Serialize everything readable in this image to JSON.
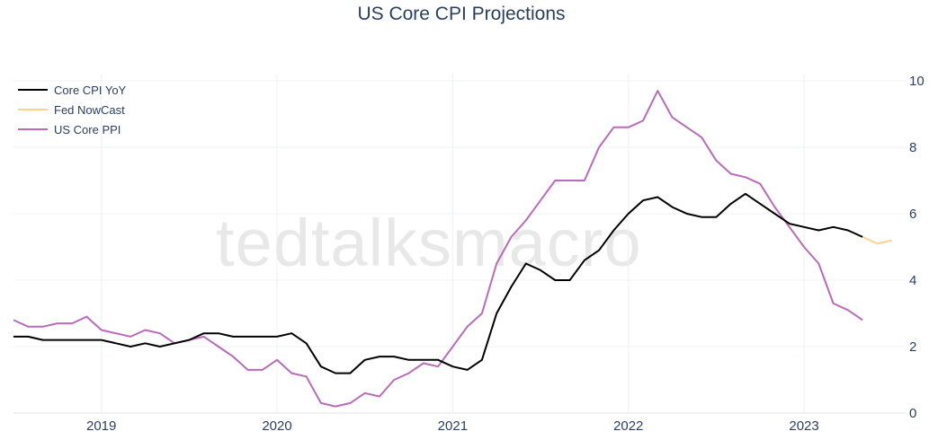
{
  "title": "US Core CPI Projections",
  "watermark": "tedtalksmacro",
  "chart_data": {
    "type": "line",
    "title": "US Core CPI Projections",
    "xlabel": "",
    "ylabel": "",
    "xlim": [
      "2018-07-01",
      "2023-08-01"
    ],
    "ylim": [
      0,
      10
    ],
    "yaxis_side": "right",
    "x_ticks": [
      "2019",
      "2020",
      "2021",
      "2022",
      "2023"
    ],
    "y_ticks": [
      0,
      2,
      4,
      6,
      8,
      10
    ],
    "grid": true,
    "legend_position": "top-left",
    "series": [
      {
        "name": "Core CPI YoY",
        "color": "#000000",
        "x": [
          "2018-07",
          "2018-08",
          "2018-09",
          "2018-10",
          "2018-11",
          "2018-12",
          "2019-01",
          "2019-02",
          "2019-03",
          "2019-04",
          "2019-05",
          "2019-06",
          "2019-07",
          "2019-08",
          "2019-09",
          "2019-10",
          "2019-11",
          "2019-12",
          "2020-01",
          "2020-02",
          "2020-03",
          "2020-04",
          "2020-05",
          "2020-06",
          "2020-07",
          "2020-08",
          "2020-09",
          "2020-10",
          "2020-11",
          "2020-12",
          "2021-01",
          "2021-02",
          "2021-03",
          "2021-04",
          "2021-05",
          "2021-06",
          "2021-07",
          "2021-08",
          "2021-09",
          "2021-10",
          "2021-11",
          "2021-12",
          "2022-01",
          "2022-02",
          "2022-03",
          "2022-04",
          "2022-05",
          "2022-06",
          "2022-07",
          "2022-08",
          "2022-09",
          "2022-10",
          "2022-11",
          "2022-12",
          "2023-01",
          "2023-02",
          "2023-03",
          "2023-04",
          "2023-05"
        ],
        "y": [
          2.3,
          2.3,
          2.2,
          2.2,
          2.2,
          2.2,
          2.2,
          2.1,
          2.0,
          2.1,
          2.0,
          2.1,
          2.2,
          2.4,
          2.4,
          2.3,
          2.3,
          2.3,
          2.3,
          2.4,
          2.1,
          1.4,
          1.2,
          1.2,
          1.6,
          1.7,
          1.7,
          1.6,
          1.6,
          1.6,
          1.4,
          1.3,
          1.6,
          3.0,
          3.8,
          4.5,
          4.3,
          4.0,
          4.0,
          4.6,
          4.9,
          5.5,
          6.0,
          6.4,
          6.5,
          6.2,
          6.0,
          5.9,
          5.9,
          6.3,
          6.6,
          6.3,
          6.0,
          5.7,
          5.6,
          5.5,
          5.6,
          5.5,
          5.3
        ]
      },
      {
        "name": "Fed NowCast",
        "color": "#ffd18f",
        "x": [
          "2023-05",
          "2023-06",
          "2023-07"
        ],
        "y": [
          5.3,
          5.1,
          5.2
        ]
      },
      {
        "name": "US Core PPI",
        "color": "#b96bb9",
        "x": [
          "2018-07",
          "2018-08",
          "2018-09",
          "2018-10",
          "2018-11",
          "2018-12",
          "2019-01",
          "2019-02",
          "2019-03",
          "2019-04",
          "2019-05",
          "2019-06",
          "2019-07",
          "2019-08",
          "2019-09",
          "2019-10",
          "2019-11",
          "2019-12",
          "2020-01",
          "2020-02",
          "2020-03",
          "2020-04",
          "2020-05",
          "2020-06",
          "2020-07",
          "2020-08",
          "2020-09",
          "2020-10",
          "2020-11",
          "2020-12",
          "2021-01",
          "2021-02",
          "2021-03",
          "2021-04",
          "2021-05",
          "2021-06",
          "2021-07",
          "2021-08",
          "2021-09",
          "2021-10",
          "2021-11",
          "2021-12",
          "2022-01",
          "2022-02",
          "2022-03",
          "2022-04",
          "2022-05",
          "2022-06",
          "2022-07",
          "2022-08",
          "2022-09",
          "2022-10",
          "2022-11",
          "2022-12",
          "2023-01",
          "2023-02",
          "2023-03",
          "2023-04",
          "2023-05"
        ],
        "y": [
          2.8,
          2.6,
          2.6,
          2.7,
          2.7,
          2.9,
          2.5,
          2.4,
          2.3,
          2.5,
          2.4,
          2.1,
          2.2,
          2.3,
          2.0,
          1.7,
          1.3,
          1.3,
          1.6,
          1.2,
          1.1,
          0.3,
          0.2,
          0.3,
          0.6,
          0.5,
          1.0,
          1.2,
          1.5,
          1.4,
          2.0,
          2.6,
          3.0,
          4.5,
          5.3,
          5.8,
          6.4,
          7.0,
          7.0,
          7.0,
          8.0,
          8.6,
          8.6,
          8.8,
          9.7,
          8.9,
          8.6,
          8.3,
          7.6,
          7.2,
          7.1,
          6.9,
          6.2,
          5.6,
          5.0,
          4.5,
          3.3,
          3.1,
          2.8
        ]
      }
    ]
  }
}
